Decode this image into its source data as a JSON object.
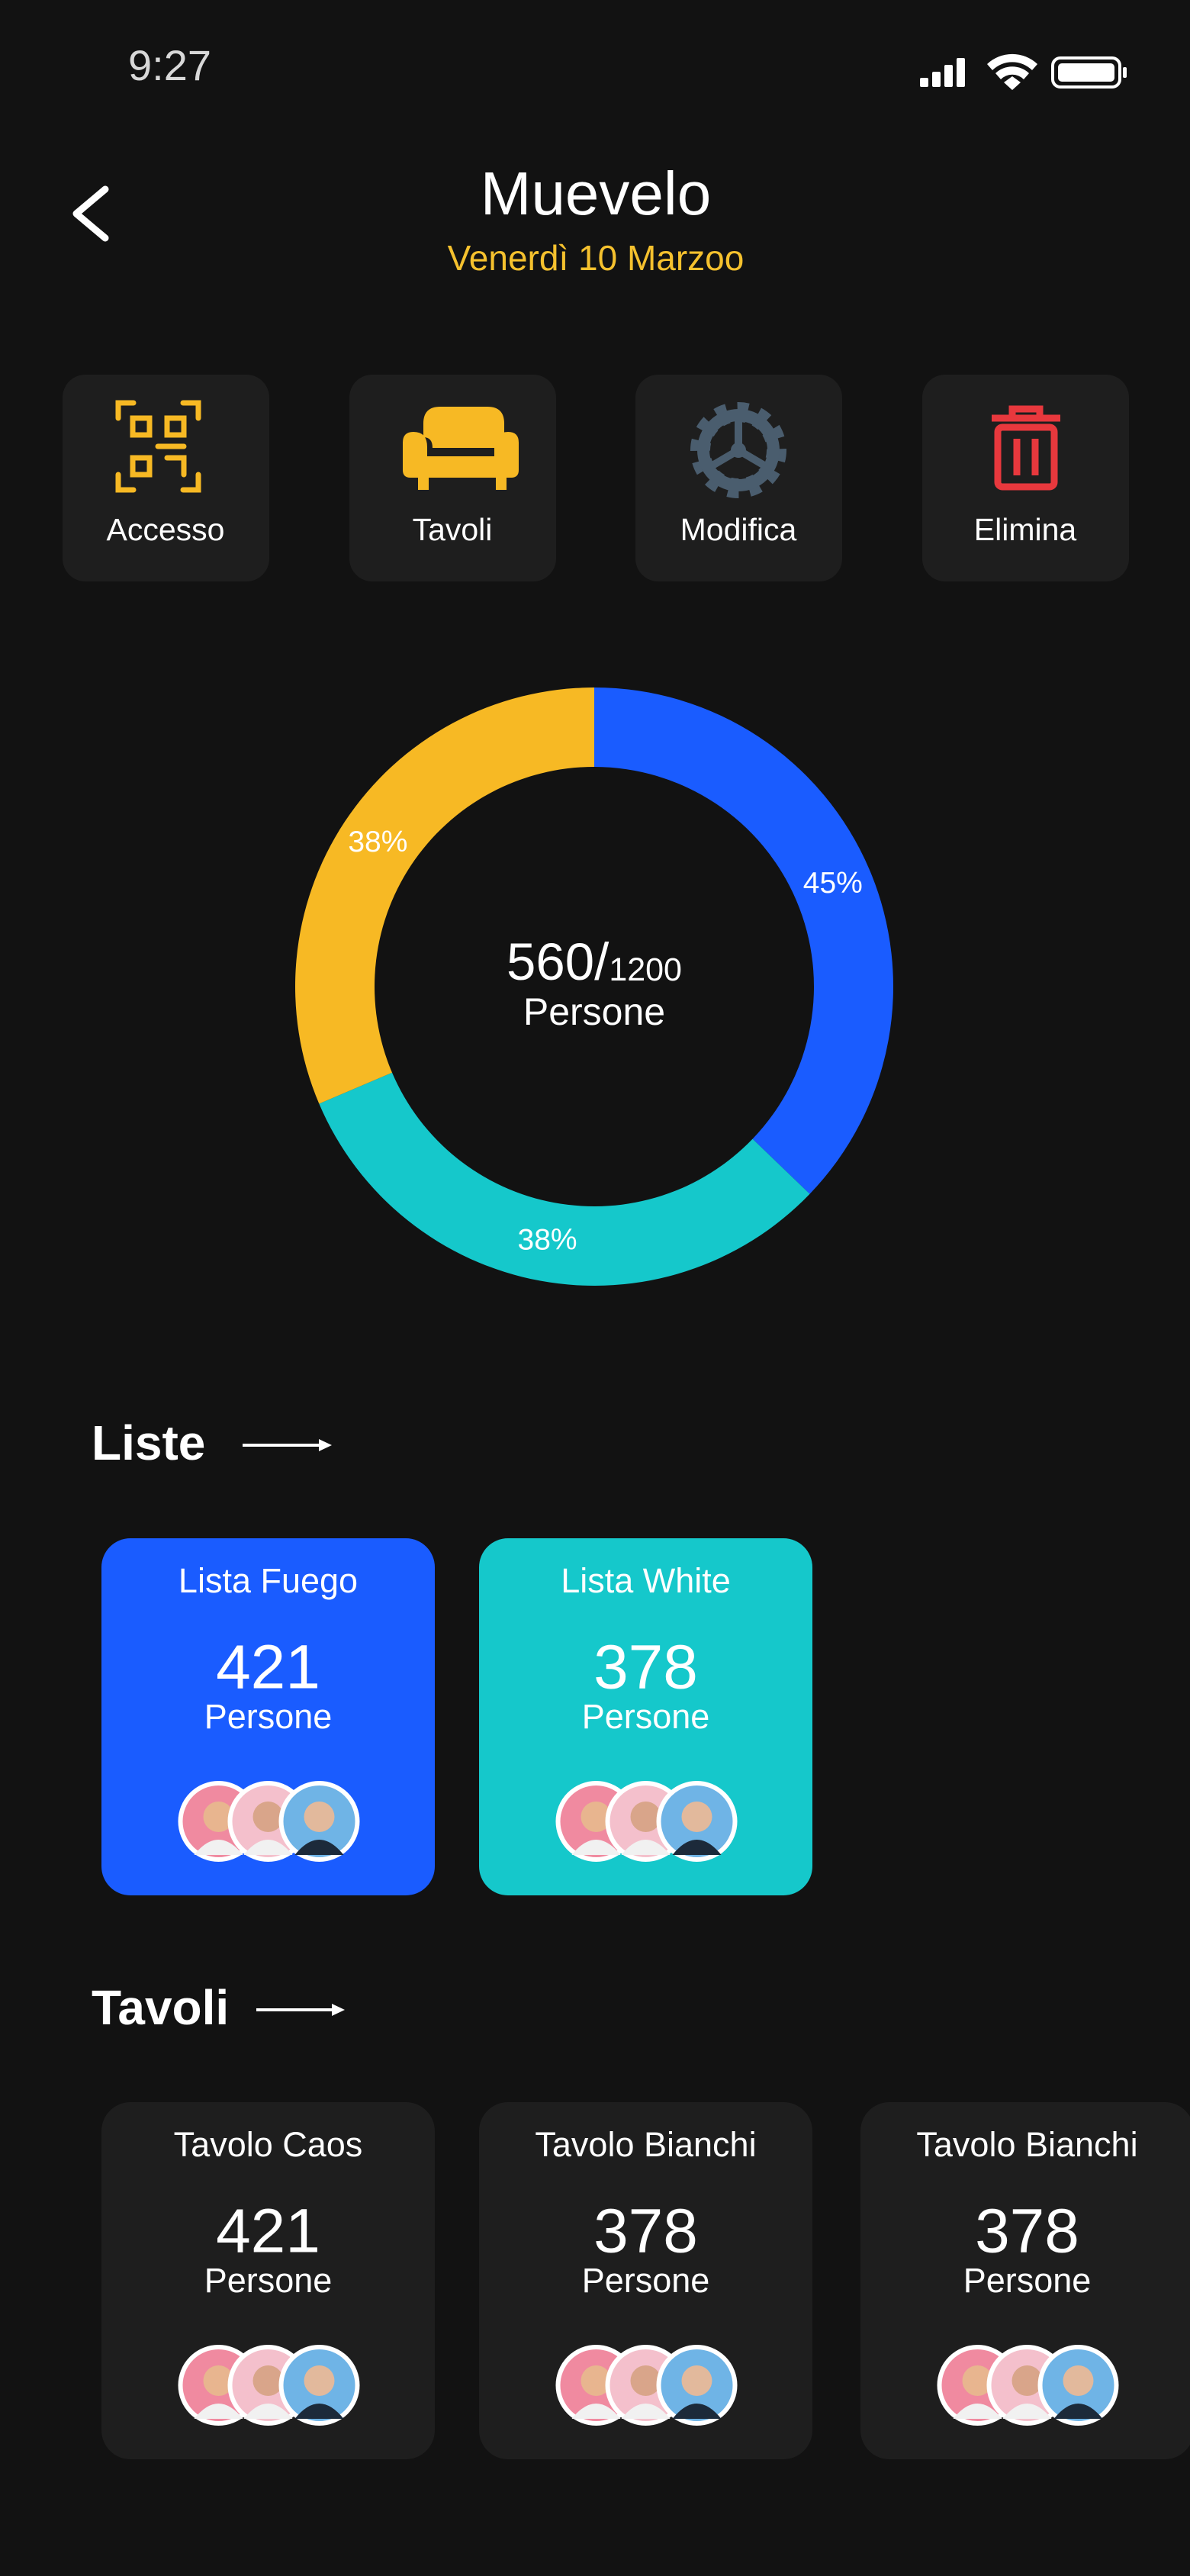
{
  "status_bar": {
    "time": "9:27"
  },
  "header": {
    "title": "Muevelo",
    "subtitle": "Venerdì 10 Marzoo"
  },
  "actions": [
    {
      "label": "Accesso"
    },
    {
      "label": "Tavoli"
    },
    {
      "label": "Modifica"
    },
    {
      "label": "Elimina"
    }
  ],
  "donut": {
    "values": [
      45,
      38,
      38
    ],
    "value_labels": [
      "45%",
      "38%",
      "38%"
    ],
    "colors": [
      "#1a5cff",
      "#15c8cb",
      "#f7b924"
    ],
    "count": 560,
    "separator": "/",
    "capacity": 1200,
    "unit": "Persone"
  },
  "lists": {
    "title": "Liste",
    "items": [
      {
        "name": "Lista Fuego",
        "count": 421,
        "unit": "Persone",
        "color": "#1a5cff"
      },
      {
        "name": "Lista White",
        "count": 378,
        "unit": "Persone",
        "color": "#15c8cb"
      }
    ]
  },
  "tables": {
    "title": "Tavoli",
    "items": [
      {
        "name": "Tavolo Caos",
        "count": 421,
        "unit": "Persone"
      },
      {
        "name": "Tavolo Bianchi",
        "count": 378,
        "unit": "Persone"
      },
      {
        "name": "Tavolo Bianchi",
        "count": 378,
        "unit": "Persone"
      }
    ]
  }
}
